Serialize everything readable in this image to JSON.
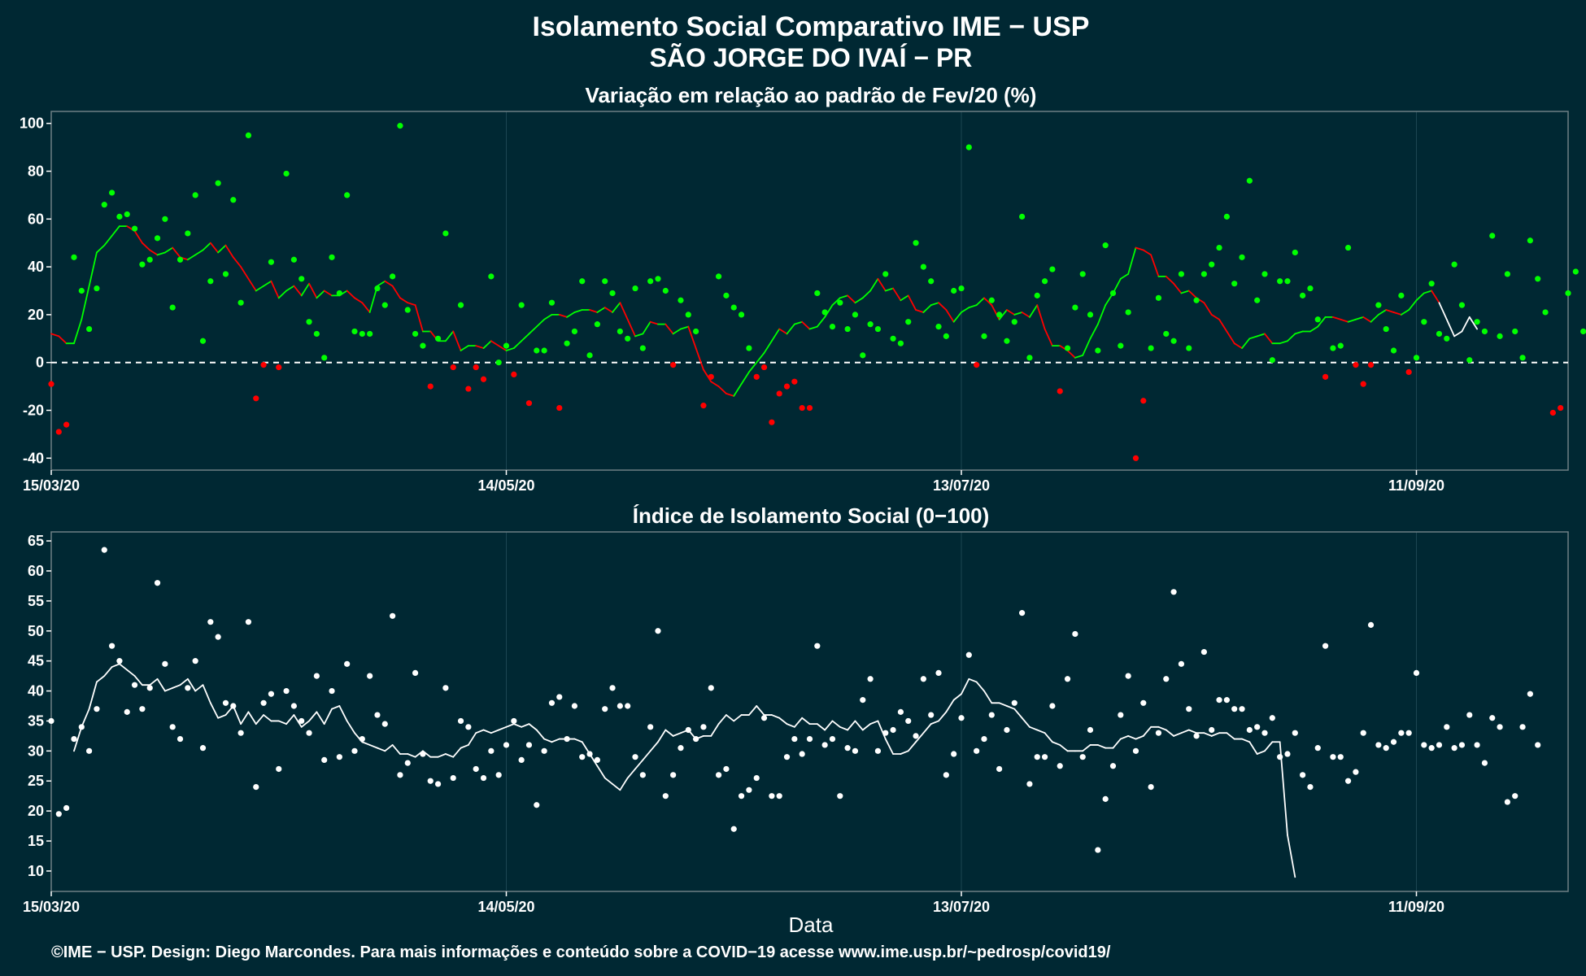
{
  "title_line1": "Isolamento Social Comparativo IME − USP",
  "title_line2": "SÃO JORGE DO IVAÍ − PR",
  "xlabel": "Data",
  "footer": "©IME − USP. Design: Diego Marcondes. Para mais informações e conteúdo sobre a COVID−19 acesse www.ime.usp.br/~pedrosp/covid19/",
  "colors": {
    "background": "#002833",
    "frame": "#6e7f84",
    "grid": "#1c4652",
    "positive": "#00ff00",
    "negative": "#ff0000",
    "index": "#ffffff"
  },
  "chart_data": [
    {
      "type": "line",
      "title": "Variação em relação ao padrão de Fev/20 (%)",
      "x_start": "15/03/20",
      "x_end": "01/10/20",
      "x_ticks": [
        "15/03/20",
        "14/05/20",
        "13/07/20",
        "11/09/20"
      ],
      "y_ticks": [
        -40,
        -20,
        0,
        20,
        40,
        60,
        80,
        100
      ],
      "ylim": [
        -45,
        105
      ],
      "reference_line": 0,
      "grid": true,
      "series": [
        {
          "points_type": "scatter",
          "values": [
            -9,
            -29,
            -26,
            44,
            30,
            14,
            31,
            66,
            71,
            61,
            62,
            56,
            41,
            43,
            52,
            60,
            23,
            43,
            54,
            70,
            9,
            34,
            75,
            37,
            68,
            25,
            95,
            -15,
            -1,
            42,
            -2,
            79,
            43,
            35,
            17,
            12,
            2,
            44,
            29,
            70,
            13,
            12,
            12,
            31,
            24,
            36,
            99,
            22,
            12,
            7,
            -10,
            10,
            54,
            -2,
            24,
            -11,
            -2,
            -7,
            36,
            0,
            7,
            -5,
            24,
            -17,
            5,
            5,
            25,
            -19,
            8,
            13,
            34,
            3,
            16,
            34,
            29,
            13,
            10,
            31,
            6,
            34,
            35,
            30,
            -1,
            26,
            20,
            13,
            -18,
            -6,
            36,
            28,
            23,
            20,
            6,
            -6,
            -2,
            -25,
            -13,
            -10,
            -8,
            -19,
            -19,
            29,
            21,
            15,
            25,
            14,
            20,
            3,
            16,
            14,
            37,
            10,
            8,
            17,
            50,
            40,
            34,
            15,
            11,
            30,
            31,
            90,
            -1,
            11,
            26,
            20,
            9,
            17,
            61,
            2,
            28,
            34,
            39,
            -12,
            6,
            23,
            37,
            20,
            5,
            49,
            29,
            7,
            21,
            -40,
            -16,
            6,
            27,
            12,
            9,
            37,
            6,
            26,
            37,
            41,
            48,
            61,
            33,
            44,
            76,
            26,
            37,
            1,
            34,
            34,
            46,
            28,
            31,
            18,
            -6,
            6,
            7,
            48,
            -1,
            -9,
            -1,
            24,
            14,
            5,
            28,
            -4,
            2,
            17,
            33,
            12,
            10,
            41,
            24,
            1,
            17,
            13,
            53,
            11,
            37,
            13,
            2,
            51,
            35,
            21,
            -21,
            -19,
            29,
            38,
            13
          ]
        },
        {
          "points_type": "line",
          "values": [
            12,
            11,
            8,
            8,
            18,
            32,
            46,
            49,
            53,
            57,
            57,
            55,
            50,
            47,
            45,
            46,
            48,
            44,
            43,
            45,
            47,
            50,
            46,
            49,
            44,
            40,
            35,
            30,
            32,
            34,
            27,
            30,
            32,
            28,
            33,
            27,
            30,
            28,
            28,
            30,
            27,
            25,
            21,
            32,
            34,
            32,
            27,
            25,
            24,
            13,
            13,
            9,
            9,
            13,
            5,
            7,
            7,
            6,
            9,
            7,
            5,
            6,
            9,
            12,
            15,
            18,
            20,
            20,
            19,
            21,
            22,
            22,
            21,
            23,
            21,
            25,
            18,
            11,
            12,
            17,
            16,
            16,
            12,
            14,
            15,
            6,
            -3,
            -8,
            -10,
            -13,
            -14,
            -9,
            -4,
            0,
            4,
            9,
            14,
            12,
            16,
            17,
            14,
            15,
            19,
            24,
            27,
            28,
            25,
            27,
            30,
            35,
            30,
            31,
            26,
            28,
            22,
            21,
            24,
            25,
            22,
            17,
            21,
            23,
            24,
            27,
            24,
            18,
            22,
            20,
            21,
            19,
            24,
            14,
            7,
            7,
            5,
            2,
            3,
            10,
            16,
            24,
            29,
            35,
            37,
            48,
            47,
            45,
            36,
            36,
            33,
            29,
            30,
            27,
            25,
            20,
            18,
            13,
            8,
            6,
            10,
            11,
            12,
            8,
            8,
            9,
            12,
            13,
            13,
            15,
            19,
            19,
            18,
            17,
            18,
            19,
            17,
            20,
            22,
            21,
            20,
            22,
            26,
            29,
            30,
            25,
            18,
            11,
            13,
            19,
            14
          ]
        }
      ]
    },
    {
      "type": "line",
      "title": "Índice de Isolamento Social (0−100)",
      "x_start": "15/03/20",
      "x_end": "01/10/20",
      "x_ticks": [
        "15/03/20",
        "14/05/20",
        "13/07/20",
        "11/09/20"
      ],
      "y_ticks": [
        10,
        15,
        20,
        25,
        30,
        35,
        40,
        45,
        50,
        55,
        60,
        65
      ],
      "ylim": [
        6.6,
        66.5
      ],
      "grid": true,
      "series": [
        {
          "points_type": "scatter",
          "values": [
            35,
            19.5,
            20.5,
            32,
            34,
            30,
            37,
            63.5,
            47.5,
            45,
            36.5,
            41,
            37,
            40.5,
            58,
            44.5,
            34,
            32,
            40.5,
            45,
            30.5,
            51.5,
            49,
            38,
            37.5,
            33,
            51.5,
            24,
            38,
            39.5,
            27,
            40,
            37.5,
            35,
            33,
            42.5,
            28.5,
            40,
            29,
            44.5,
            30,
            32,
            42.5,
            36,
            34.5,
            52.5,
            26,
            28,
            43,
            29.5,
            25,
            24.5,
            40.5,
            25.5,
            35,
            34,
            27,
            25.5,
            30,
            26,
            31,
            35,
            28.5,
            31,
            21,
            30,
            38,
            39,
            32,
            37.5,
            29,
            29.5,
            28.5,
            37,
            40.5,
            37.5,
            37.5,
            29,
            26,
            34,
            50,
            22.5,
            26,
            30.5,
            33.5,
            32,
            34,
            40.5,
            26,
            27,
            17,
            22.5,
            23.5,
            25.5,
            35.5,
            22.5,
            22.5,
            29,
            32,
            29.5,
            32,
            47.5,
            31,
            32,
            22.5,
            30.5,
            30,
            38.5,
            42,
            30,
            33,
            33.5,
            36.5,
            35,
            32.5,
            42,
            36,
            43,
            26,
            29.5,
            35.5,
            46,
            30,
            32,
            36,
            27,
            33.5,
            38,
            53,
            24.5,
            29,
            29,
            37.5,
            27.5,
            42,
            49.5,
            29,
            33.5,
            13.5,
            22,
            27.5,
            36,
            42.5,
            30,
            38,
            24,
            33,
            42,
            56.5,
            44.5,
            37,
            32.5,
            46.5,
            33.5,
            38.5,
            38.5,
            37,
            37,
            33.5,
            34,
            33,
            35.5,
            29,
            29.5,
            33,
            26,
            24,
            30.5,
            47.5,
            29,
            29,
            25,
            26.5,
            33,
            51,
            31,
            30.5,
            31.5,
            33,
            33,
            43,
            31,
            30.5,
            31,
            34,
            30.5,
            31,
            36,
            31,
            28,
            35.5,
            34,
            21.5,
            22.5,
            34,
            39.5,
            31
          ]
        },
        {
          "points_type": "line",
          "values": [
            30,
            34,
            37,
            41.5,
            42.5,
            44,
            44.5,
            43.5,
            42.5,
            41,
            41,
            42,
            40,
            40.5,
            41,
            42,
            40,
            41,
            38,
            35.5,
            36,
            37.5,
            34.5,
            36.5,
            34.5,
            36,
            35,
            35,
            34.5,
            36,
            34,
            35,
            36.5,
            34.5,
            37,
            37.5,
            35,
            33,
            31.5,
            31,
            30.5,
            30,
            31,
            29.5,
            29.5,
            29,
            30,
            29,
            29,
            29.5,
            29,
            30.5,
            31,
            33,
            33.5,
            33,
            33.5,
            34,
            34.5,
            34,
            34.5,
            33.5,
            32,
            31.5,
            32,
            32,
            32,
            31.5,
            29.5,
            27.5,
            25.5,
            24.5,
            23.5,
            25.5,
            27,
            28.5,
            30,
            31.5,
            33.5,
            32.5,
            33,
            33.5,
            32,
            32.5,
            32.5,
            34.5,
            36,
            35,
            36,
            36,
            37.5,
            36,
            36,
            35.5,
            34.5,
            34,
            35.5,
            34.5,
            34.5,
            33.5,
            35,
            34,
            33.5,
            35,
            33.5,
            34.5,
            35,
            32,
            29.5,
            29.5,
            30,
            31.5,
            33,
            34.5,
            35,
            36.5,
            38.5,
            39.5,
            42,
            41.5,
            40,
            38,
            38,
            37.5,
            37,
            35.5,
            34,
            33.5,
            33,
            31.5,
            31,
            30,
            30,
            30,
            31,
            31,
            30.5,
            30.5,
            32,
            32.5,
            32,
            32.5,
            34,
            34,
            33.5,
            32.5,
            33,
            33.5,
            33,
            33,
            32.5,
            33,
            33,
            32,
            32,
            31.5,
            29.5,
            30,
            31.5,
            31.5,
            16,
            9
          ]
        }
      ]
    }
  ]
}
